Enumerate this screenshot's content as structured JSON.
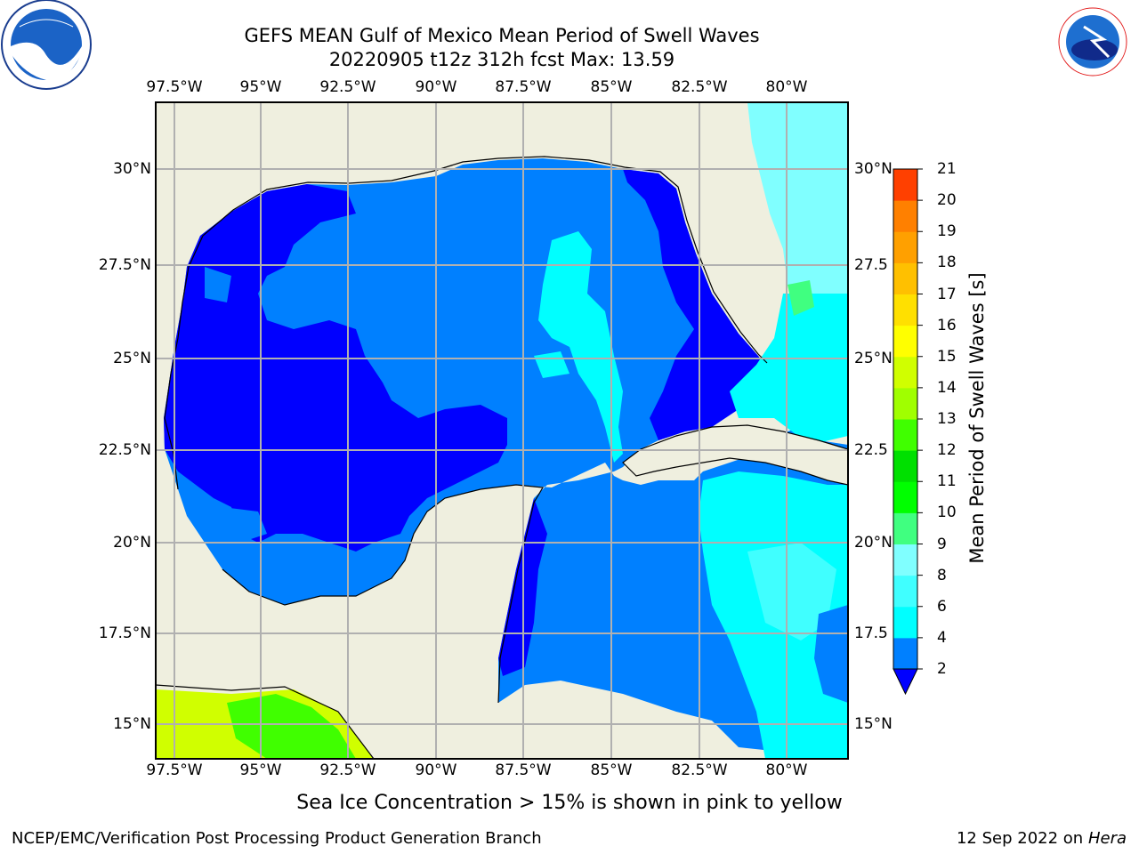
{
  "title": {
    "line1": "GEFS MEAN Gulf of Mexico Mean Period of Swell Waves",
    "line2": "20220905 t12z 312h fcst   Max: 13.59"
  },
  "map": {
    "lon_labels": [
      "97.5°W",
      "95°W",
      "92.5°W",
      "90°W",
      "87.5°W",
      "85°W",
      "82.5°W",
      "80°W"
    ],
    "lat_labels": [
      "30°N",
      "27.5°N",
      "25°N",
      "22.5°N",
      "20°N",
      "17.5°N",
      "15°N"
    ],
    "lat_labels_right": [
      "30°N",
      "27.5",
      "25°N",
      "22.5",
      "20°N",
      "17.5",
      "15°N"
    ],
    "land_color": "#efefdf",
    "ocean_palette": {
      "2-4": "#0000ff",
      "4-6 (basin)": "#0080ff",
      "6-8": "#00ffff",
      "8-9": "#80ffff",
      "10-11": "#00ff00"
    }
  },
  "colorbar": {
    "label": "Mean Period of Swell Waves [s]",
    "ticks": [
      "2",
      "4",
      "6",
      "8",
      "9",
      "10",
      "11",
      "12",
      "13",
      "14",
      "15",
      "16",
      "17",
      "18",
      "19",
      "20",
      "21"
    ],
    "colors": [
      "#0080ff",
      "#00ffff",
      "#40ffff",
      "#80ffff",
      "#40ff80",
      "#00ff00",
      "#00e000",
      "#40ff00",
      "#a0ff00",
      "#d0ff00",
      "#ffff00",
      "#ffe000",
      "#ffc000",
      "#ffa000",
      "#ff8000",
      "#ff4000",
      "#ff0000"
    ],
    "under_color": "#0000ff"
  },
  "logos": {
    "left": {
      "text": "NOAA"
    },
    "right": {
      "text": "NATIONAL WEATHER SERVICE"
    }
  },
  "footer": {
    "note": "Sea Ice Concentration > 15% is shown in pink to yellow",
    "left": "NCEP/EMC/Verification Post Processing Product Generation Branch",
    "right_date": "12 Sep 2022 on",
    "right_machine": "Hera"
  }
}
